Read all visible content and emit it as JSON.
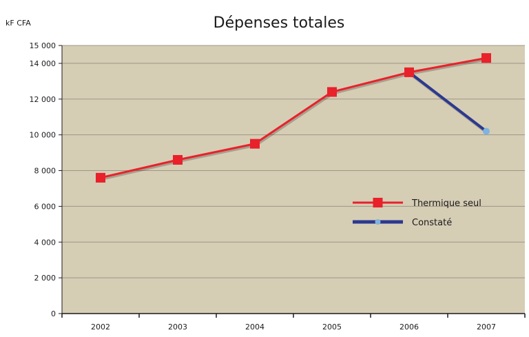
{
  "chart_data": {
    "type": "line",
    "title": "Dépenses totales",
    "ylabel": "kF CFA",
    "xlabel": "",
    "categories": [
      "2002",
      "2003",
      "2004",
      "2005",
      "2006",
      "2007"
    ],
    "ylim": [
      0,
      15000
    ],
    "yticks": [
      0,
      2000,
      4000,
      6000,
      8000,
      10000,
      12000,
      14000,
      15000
    ],
    "ytick_labels": [
      "0",
      "2 000",
      "4 000",
      "6 000",
      "8 000",
      "10 000",
      "12 000",
      "14 000",
      "15 000"
    ],
    "grid": true,
    "legend_position": "right",
    "plot_background": "#d6cdb5",
    "series": [
      {
        "name": "Thermique seul",
        "color": "#e8212b",
        "marker": "square",
        "values": [
          7600,
          8600,
          9500,
          12400,
          13500,
          14300
        ]
      },
      {
        "name": "Constaté",
        "color": "#2b3990",
        "marker_color": "#7fb3e0",
        "marker": "circle",
        "values": [
          null,
          null,
          null,
          null,
          13500,
          10200
        ]
      }
    ]
  }
}
